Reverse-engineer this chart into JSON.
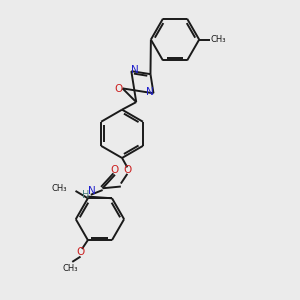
{
  "background_color": "#ebebeb",
  "bond_color": "#1a1a1a",
  "n_color": "#2020cc",
  "o_color": "#cc2020",
  "h_color": "#4a8080",
  "figsize": [
    3.0,
    3.0
  ],
  "dpi": 100,
  "xlim": [
    0,
    10
  ],
  "ylim": [
    0,
    10
  ]
}
